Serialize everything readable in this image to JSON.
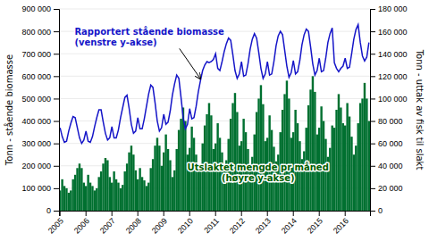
{
  "chart_data": {
    "type": "bar",
    "ylabel": "Tonn - stående biomasse",
    "y2label": "Tonn - uttak av fisk til slakt",
    "categories": [
      "2005",
      null,
      null,
      null,
      null,
      null,
      null,
      null,
      null,
      null,
      null,
      null,
      "2006",
      null,
      null,
      null,
      null,
      null,
      null,
      null,
      null,
      null,
      null,
      null,
      "2007",
      null,
      null,
      null,
      null,
      null,
      null,
      null,
      null,
      null,
      null,
      null,
      "2008",
      null,
      null,
      null,
      null,
      null,
      null,
      null,
      null,
      null,
      null,
      null,
      "2009",
      null,
      null,
      null,
      null,
      null,
      null,
      null,
      null,
      null,
      null,
      null,
      "2010",
      null,
      null,
      null,
      null,
      null,
      null,
      null,
      null,
      null,
      null,
      null,
      "2011",
      null,
      null,
      null,
      null,
      null,
      null,
      null,
      null,
      null,
      null,
      null,
      "2012",
      null,
      null,
      null,
      null,
      null,
      null,
      null,
      null,
      null,
      null,
      null,
      "2013",
      null,
      null,
      null,
      null,
      null,
      null,
      null,
      null,
      null,
      null,
      null,
      "2014",
      null,
      null,
      null,
      null,
      null,
      null,
      null,
      null,
      null,
      null,
      null,
      "2015",
      null,
      null,
      null,
      null,
      null,
      null,
      null,
      null,
      null,
      null,
      null,
      "2016",
      null,
      null,
      null,
      null,
      null,
      null,
      null,
      null,
      null,
      null,
      null
    ],
    "series": [
      {
        "type": "bar",
        "axis": "y2",
        "color": "#007030",
        "values": [
          18000,
          28000,
          22000,
          20000,
          16000,
          18000,
          28000,
          32000,
          38000,
          42000,
          38000,
          25000,
          22000,
          32000,
          25000,
          22000,
          18000,
          20000,
          30000,
          35000,
          42000,
          47000,
          45000,
          30000,
          25000,
          35000,
          28000,
          25000,
          20000,
          23000,
          35000,
          42000,
          52000,
          58000,
          50000,
          36000,
          28000,
          38000,
          30000,
          27000,
          22000,
          25000,
          38000,
          46000,
          58000,
          65000,
          58000,
          40000,
          52000,
          68000,
          55000,
          45000,
          30000,
          36000,
          55000,
          72000,
          82000,
          92000,
          80000,
          50000,
          56000,
          75000,
          65000,
          50000,
          36000,
          40000,
          60000,
          76000,
          86000,
          96000,
          85000,
          55000,
          60000,
          78000,
          65000,
          52000,
          38000,
          45000,
          64000,
          82000,
          96000,
          105000,
          88000,
          58000,
          62000,
          82000,
          70000,
          55000,
          40000,
          48000,
          68000,
          88000,
          100000,
          112000,
          95000,
          62000,
          65000,
          85000,
          72000,
          57000,
          44000,
          50000,
          70000,
          90000,
          104000,
          116000,
          100000,
          65000,
          70000,
          90000,
          78000,
          62000,
          46000,
          53000,
          74000,
          94000,
          108000,
          120000,
          106000,
          68000,
          74000,
          93000,
          80000,
          64000,
          48000,
          56000,
          76000,
          74000,
          90000,
          104000,
          92000,
          78000,
          76000,
          96000,
          84000,
          66000,
          50000,
          58000,
          78000,
          96000,
          100000,
          114000,
          100000,
          80000
        ]
      },
      {
        "type": "line",
        "color": "#1515c8",
        "values": [
          370000,
          330000,
          305000,
          310000,
          355000,
          390000,
          420000,
          415000,
          370000,
          325000,
          300000,
          315000,
          355000,
          310000,
          305000,
          330000,
          375000,
          415000,
          450000,
          450000,
          395000,
          345000,
          315000,
          325000,
          375000,
          325000,
          325000,
          360000,
          415000,
          460000,
          505000,
          515000,
          455000,
          385000,
          345000,
          355000,
          415000,
          365000,
          365000,
          410000,
          465000,
          520000,
          560000,
          550000,
          480000,
          400000,
          355000,
          370000,
          430000,
          385000,
          395000,
          445000,
          515000,
          565000,
          605000,
          590000,
          505000,
          415000,
          365000,
          385000,
          455000,
          410000,
          415000,
          465000,
          530000,
          580000,
          625000,
          650000,
          665000,
          660000,
          665000,
          675000,
          700000,
          635000,
          625000,
          665000,
          710000,
          745000,
          770000,
          760000,
          695000,
          625000,
          590000,
          610000,
          665000,
          600000,
          605000,
          655000,
          720000,
          765000,
          790000,
          770000,
          705000,
          635000,
          590000,
          610000,
          665000,
          605000,
          610000,
          665000,
          735000,
          780000,
          800000,
          785000,
          715000,
          645000,
          595000,
          615000,
          670000,
          610000,
          620000,
          670000,
          740000,
          785000,
          810000,
          800000,
          730000,
          655000,
          605000,
          625000,
          680000,
          620000,
          625000,
          680000,
          750000,
          790000,
          815000,
          660000,
          635000,
          620000,
          635000,
          645000,
          680000,
          635000,
          640000,
          700000,
          765000,
          808000,
          830000,
          750000,
          690000,
          668000,
          685000,
          750000
        ]
      }
    ],
    "ylim": [
      0,
      900000
    ],
    "yticks": [
      0,
      {
        "value": 100000,
        "label": "100 000"
      },
      {
        "value": 200000,
        "label": "200 000"
      },
      {
        "value": 300000,
        "label": "300 000"
      },
      {
        "value": 400000,
        "label": "400 000"
      },
      {
        "value": 500000,
        "label": "500 000"
      },
      {
        "value": 600000,
        "label": "600 000"
      },
      {
        "value": 700000,
        "label": "700 000"
      },
      {
        "value": 800000,
        "label": "800 000"
      },
      {
        "value": 900000,
        "label": "900 000"
      }
    ],
    "y2lim": [
      0,
      180000
    ],
    "y2ticks": [
      0,
      {
        "value": 20000,
        "label": "20 000"
      },
      {
        "value": 40000,
        "label": "40 000"
      },
      {
        "value": 60000,
        "label": "60 000"
      },
      {
        "value": 80000,
        "label": "80 000"
      },
      {
        "value": 100000,
        "label": "100 000"
      },
      {
        "value": 120000,
        "label": "120 000"
      },
      {
        "value": 140000,
        "label": "140 000"
      },
      {
        "value": 160000,
        "label": "160 000"
      },
      {
        "value": 180000,
        "label": "180 000"
      }
    ],
    "grid": true,
    "annotations": [
      {
        "text": [
          "Rapportert stående biomasse",
          "(venstre y-akse)"
        ],
        "color": "#1515c8"
      },
      {
        "text": [
          "Utslaktet mengde pr måned",
          "(høyre y-akse)"
        ],
        "color": "#006000"
      }
    ]
  }
}
